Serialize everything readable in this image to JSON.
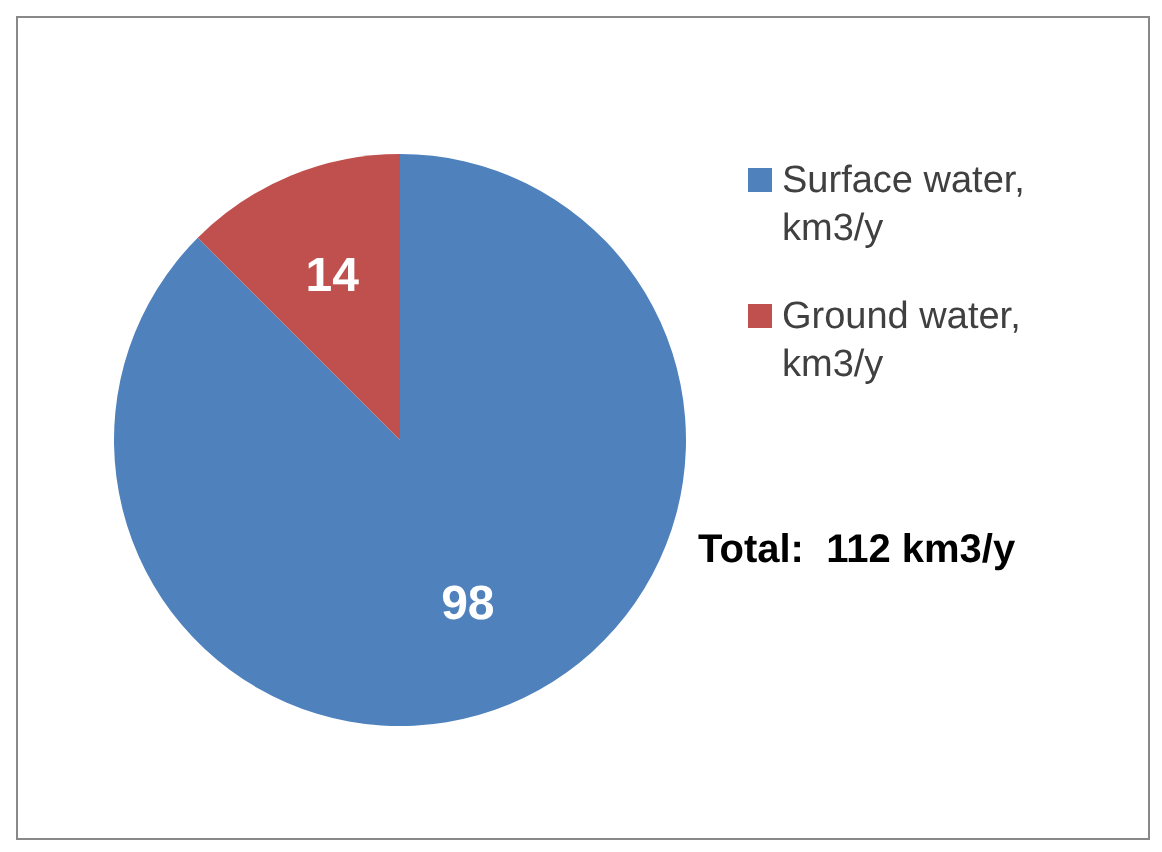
{
  "chart_data": {
    "type": "pie",
    "categories": [
      "Surface water, km3/y",
      "Ground water, km3/y"
    ],
    "values": [
      98,
      14
    ],
    "colors": [
      "#4f81bd",
      "#c0504d"
    ],
    "data_labels": true,
    "legend": "right",
    "annotations": [
      "Total:  112 km3/y"
    ]
  }
}
